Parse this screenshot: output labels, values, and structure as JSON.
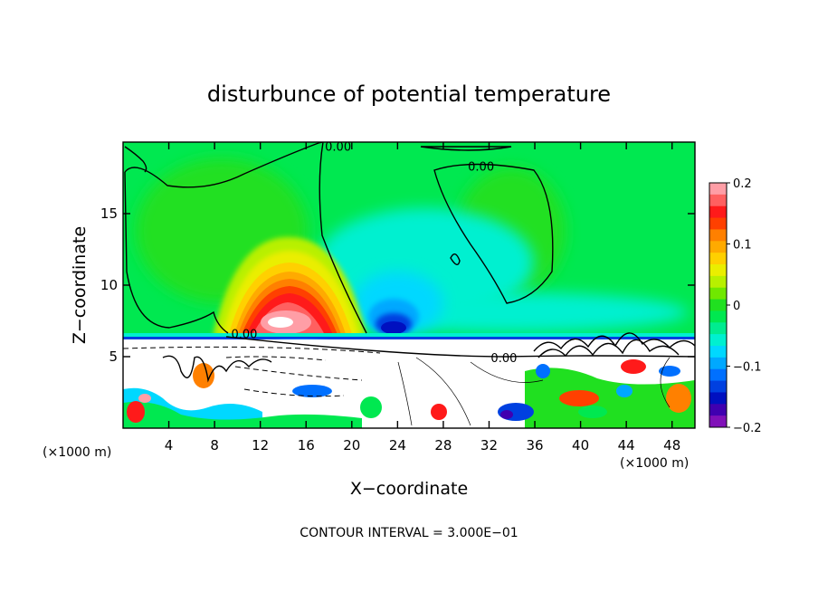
{
  "chart_data": {
    "type": "heatmap",
    "title": "disturbunce of potential temperature",
    "xlabel": "X−coordinate",
    "ylabel": "Z−coordinate",
    "x_unit": "(×1000 m)",
    "x_unit_right": "(×1000 m)",
    "xlim": [
      0,
      50
    ],
    "ylim": [
      0,
      20
    ],
    "xticks": [
      4,
      8,
      12,
      16,
      20,
      24,
      28,
      32,
      36,
      40,
      44,
      48
    ],
    "yticks": [
      5,
      10,
      15
    ],
    "footer": "CONTOUR INTERVAL = 3.000E−01",
    "contour_labels": [
      {
        "x": 18.8,
        "y": 19.6,
        "text": "0.00"
      },
      {
        "x": 31.3,
        "y": 18.2,
        "text": "0.00"
      },
      {
        "x": 10.6,
        "y": 6.5,
        "text": "0.00"
      },
      {
        "x": 33.3,
        "y": 4.8,
        "text": "0.00"
      }
    ],
    "colorbar": {
      "min": -0.2,
      "max": 0.2,
      "ticks": [
        0.2,
        0.1,
        0,
        -0.1,
        -0.2
      ],
      "tick_labels": [
        "0.2",
        "0.1",
        "0",
        "−0.1",
        "−0.2"
      ],
      "colors": [
        "#ff9ea6",
        "#ff6060",
        "#ff1a1a",
        "#ff4000",
        "#ff8000",
        "#ffaa00",
        "#ffd000",
        "#eaee00",
        "#b8f000",
        "#70e800",
        "#20e020",
        "#00e850",
        "#00ec90",
        "#00f0d0",
        "#00d8ff",
        "#00a8ff",
        "#0070ff",
        "#0040e0",
        "#0010c0",
        "#4000b0",
        "#8010b8"
      ]
    },
    "features": [
      {
        "kind": "warm_anomaly",
        "x": 13.5,
        "z": 7.3,
        "peak": 0.2
      },
      {
        "kind": "cold_anomaly",
        "x": 24,
        "z": 7,
        "peak": -0.13
      },
      {
        "kind": "turbulent_layer",
        "z_top": 6.3
      }
    ]
  }
}
